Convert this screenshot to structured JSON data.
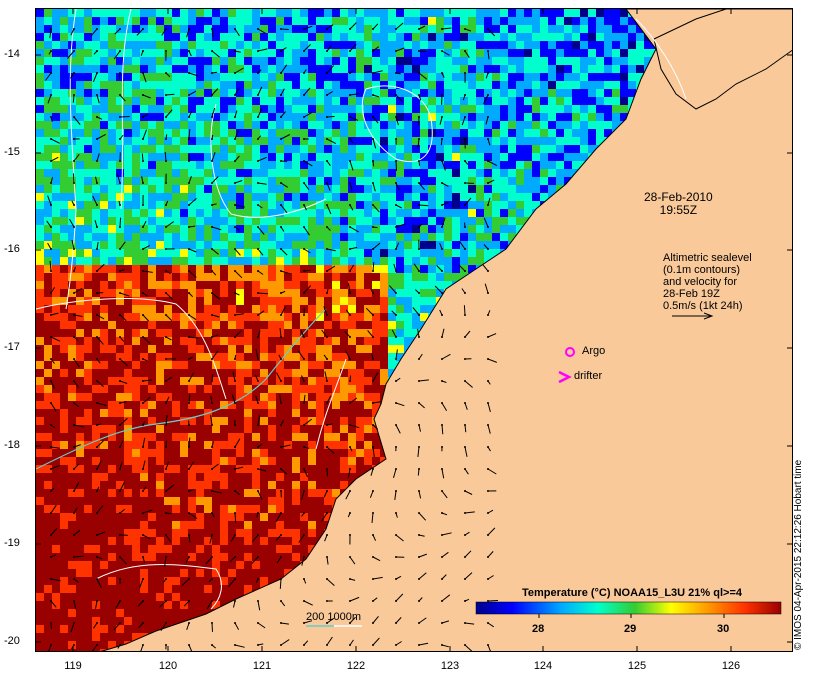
{
  "axes": {
    "y_ticks": [
      "-14",
      "-15",
      "-16",
      "-17",
      "-18",
      "-19",
      "-20"
    ],
    "x_ticks": [
      "119",
      "120",
      "121",
      "122",
      "123",
      "124",
      "125",
      "126"
    ]
  },
  "annotations": {
    "date_line1": "28-Feb-2010",
    "date_line2": "19:55Z",
    "altimetry_lines": [
      "Altimetric sealevel",
      "(0.1m contours)",
      "and velocity for",
      "28-Feb 19Z",
      "0.5m/s (1kt 24h)"
    ],
    "argo_label": "Argo",
    "drifter_label": "drifter",
    "depth_label": "200  1000m"
  },
  "colorbar": {
    "title": "Temperature (°C) NOAA15_L3U 21% ql>=4",
    "ticks": [
      "28",
      "29",
      "30"
    ]
  },
  "credit": "© IMOS 04-Apr-2015 22:12:26 Hobart time",
  "colors": {
    "land": "#f9c99a",
    "sst_scale": [
      "#00008b",
      "#0000ff",
      "#00aaff",
      "#00ffcc",
      "#33cc33",
      "#ffff00",
      "#ff9900",
      "#ff3300",
      "#990000"
    ],
    "argo_marker": "#ff00ff",
    "drifter_marker": "#ff00ff",
    "contour": "#ffffff",
    "isobath_200": "#66cccc",
    "isobath_1000": "#ffffff"
  }
}
